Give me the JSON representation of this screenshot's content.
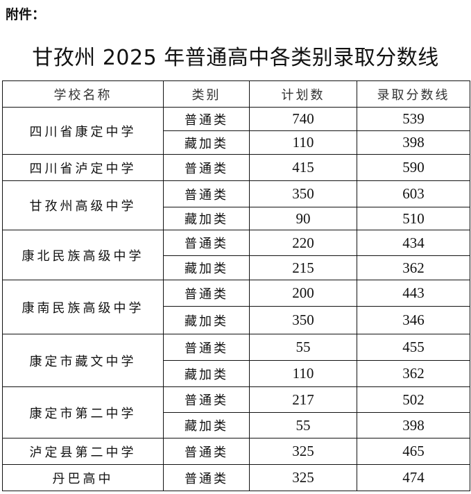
{
  "attachment_label": "附件：",
  "title": "甘孜州 2025 年普通高中各类别录取分数线",
  "table": {
    "headers": [
      "学校名称",
      "类别",
      "计划数",
      "录取分数线"
    ],
    "schools": [
      {
        "name": "四川省康定中学",
        "rows": [
          {
            "category": "普通类",
            "plan": "740",
            "score": "539"
          },
          {
            "category": "藏加类",
            "plan": "110",
            "score": "398"
          }
        ]
      },
      {
        "name": "四川省泸定中学",
        "rows": [
          {
            "category": "普通类",
            "plan": "415",
            "score": "590"
          }
        ]
      },
      {
        "name": "甘孜州高级中学",
        "rows": [
          {
            "category": "普通类",
            "plan": "350",
            "score": "603"
          },
          {
            "category": "藏加类",
            "plan": "90",
            "score": "510"
          }
        ]
      },
      {
        "name": "康北民族高级中学",
        "rows": [
          {
            "category": "普通类",
            "plan": "220",
            "score": "434"
          },
          {
            "category": "藏加类",
            "plan": "215",
            "score": "362"
          }
        ]
      },
      {
        "name": "康南民族高级中学",
        "rows": [
          {
            "category": "普通类",
            "plan": "200",
            "score": "443"
          },
          {
            "category": "藏加类",
            "plan": "350",
            "score": "346"
          }
        ]
      },
      {
        "name": "康定市藏文中学",
        "rows": [
          {
            "category": "普通类",
            "plan": "55",
            "score": "455"
          },
          {
            "category": "藏加类",
            "plan": "110",
            "score": "362"
          }
        ]
      },
      {
        "name": "康定市第二中学",
        "rows": [
          {
            "category": "普通类",
            "plan": "217",
            "score": "502"
          },
          {
            "category": "藏加类",
            "plan": "55",
            "score": "398"
          }
        ]
      },
      {
        "name": "泸定县第二中学",
        "rows": [
          {
            "category": "普通类",
            "plan": "325",
            "score": "465"
          }
        ]
      },
      {
        "name": "丹巴高中",
        "rows": [
          {
            "category": "普通类",
            "plan": "325",
            "score": "474"
          }
        ]
      }
    ]
  }
}
